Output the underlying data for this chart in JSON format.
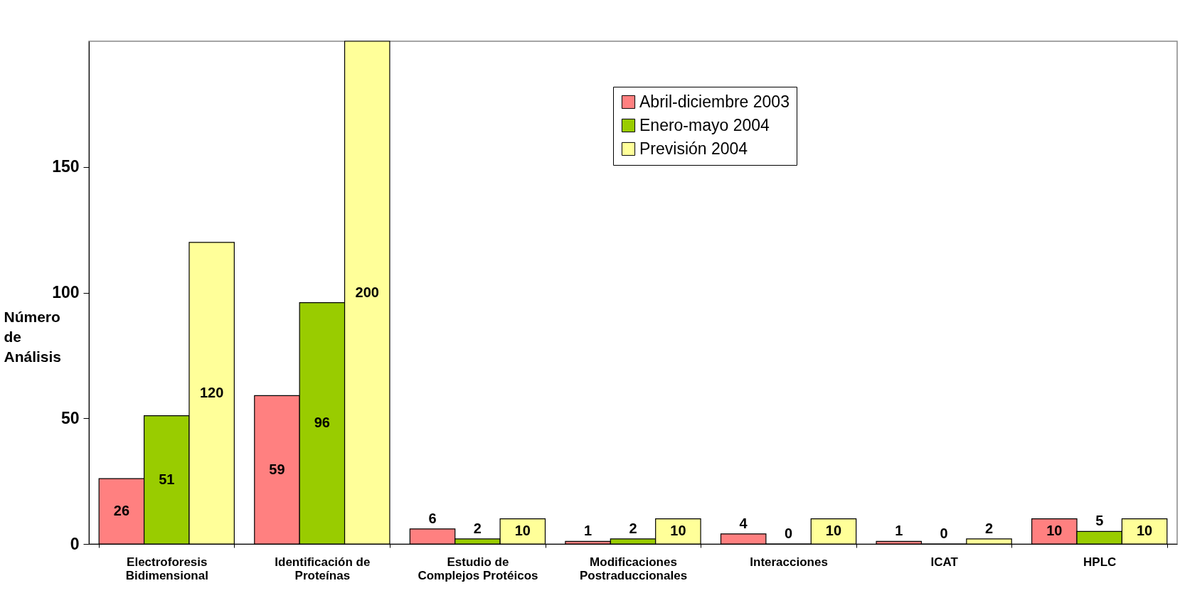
{
  "chart_data": {
    "type": "bar",
    "ylabel": "Número de Análisis",
    "categories": [
      "Electroforesis Bidimensional",
      "Identificación de Proteínas",
      "Estudio de Complejos Protéicos",
      "Modificaciones Postraduccionales",
      "Interacciones",
      "ICAT",
      "HPLC"
    ],
    "series": [
      {
        "name": "Abril-diciembre 2003",
        "color": "#ff8080",
        "values": [
          26,
          59,
          6,
          1,
          4,
          1,
          10
        ]
      },
      {
        "name": "Enero-mayo 2004",
        "color": "#99cc00",
        "values": [
          51,
          96,
          2,
          2,
          0,
          0,
          5
        ]
      },
      {
        "name": "Previsión 2004",
        "color": "#ffff99",
        "values": [
          120,
          200,
          10,
          10,
          10,
          2,
          10
        ]
      }
    ],
    "ylim": [
      0,
      200
    ],
    "yticks": [
      0,
      50,
      100,
      150
    ],
    "grid": false,
    "legend": "top right",
    "data_labels": true
  }
}
